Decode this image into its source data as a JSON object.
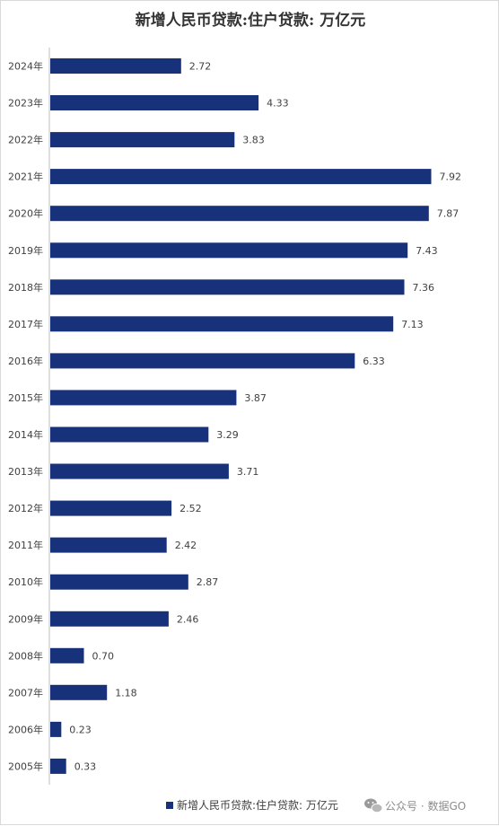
{
  "chart_data": {
    "type": "bar",
    "orientation": "horizontal",
    "title": "新增人民币贷款:住户贷款: 万亿元",
    "categories": [
      "2024年",
      "2023年",
      "2022年",
      "2021年",
      "2020年",
      "2019年",
      "2018年",
      "2017年",
      "2016年",
      "2015年",
      "2014年",
      "2013年",
      "2012年",
      "2011年",
      "2010年",
      "2009年",
      "2008年",
      "2007年",
      "2006年",
      "2005年"
    ],
    "series": [
      {
        "name": "新增人民币贷款:住户贷款: 万亿元",
        "values": [
          2.72,
          4.33,
          3.83,
          7.92,
          7.87,
          7.43,
          7.36,
          7.13,
          6.33,
          3.87,
          3.29,
          3.71,
          2.52,
          2.42,
          2.87,
          2.46,
          0.7,
          1.18,
          0.23,
          0.33
        ],
        "labels": [
          "2.72",
          "4.33",
          "3.83",
          "7.92",
          "7.87",
          "7.43",
          "7.36",
          "7.13",
          "6.33",
          "3.87",
          "3.29",
          "3.71",
          "2.52",
          "2.42",
          "2.87",
          "2.46",
          "0.70",
          "1.18",
          "0.23",
          "0.33"
        ]
      }
    ],
    "xlim": [
      0,
      8.5
    ],
    "grid": false,
    "legend_position": "bottom",
    "colors": {
      "bar": "#17317a",
      "text": "#404040",
      "axis": "#bfbfbf"
    }
  },
  "watermark": {
    "text": "公众号 · 数据GO",
    "icon": "wechat-icon"
  }
}
